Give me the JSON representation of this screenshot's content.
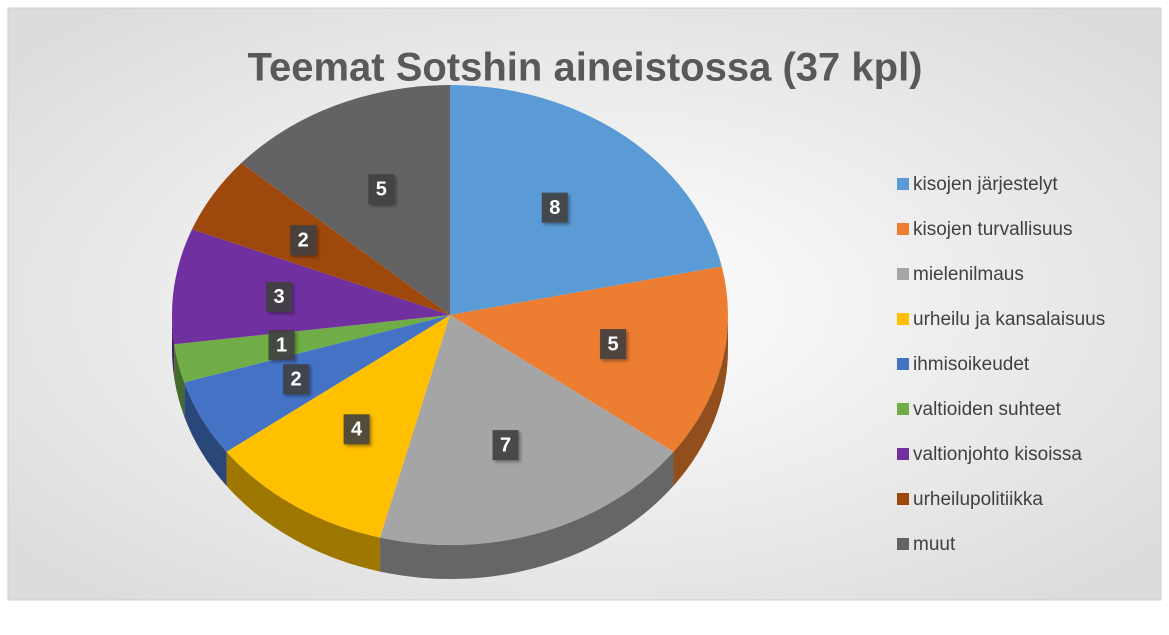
{
  "chart_data": {
    "type": "pie",
    "title": "Teemat Sotshin aineistossa (37 kpl)",
    "categories": [
      "kisojen järjestelyt",
      "kisojen turvallisuus",
      "mielenilmaus",
      "urheilu ja kansalaisuus",
      "ihmisoikeudet",
      "valtioiden suhteet",
      "valtionjohto kisoissa",
      "urheilupolitiikka",
      "muut"
    ],
    "values": [
      8,
      5,
      7,
      4,
      2,
      1,
      3,
      2,
      5
    ],
    "colors": [
      "#5b9bd5",
      "#ed7d31",
      "#a5a5a5",
      "#ffc000",
      "#4472c4",
      "#70ad47",
      "#7030a0",
      "#9e480e",
      "#636363"
    ],
    "legend": "right",
    "three_d": true
  }
}
